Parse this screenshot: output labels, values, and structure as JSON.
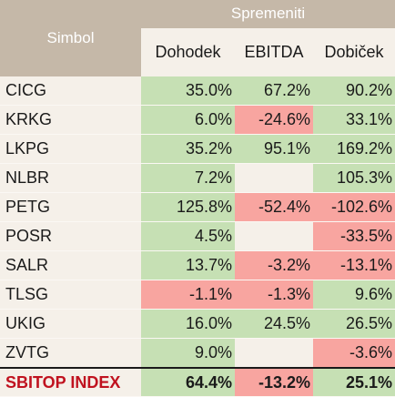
{
  "table": {
    "header": {
      "symbol_label": "Simbol",
      "group_label": "Spremeniti",
      "columns": [
        "Dohodek",
        "EBITDA",
        "Dobiček"
      ]
    },
    "rows": [
      {
        "symbol": "CICG",
        "values": [
          "35.0%",
          "67.2%",
          "90.2%"
        ],
        "states": [
          "pos",
          "pos",
          "pos"
        ]
      },
      {
        "symbol": "KRKG",
        "values": [
          "6.0%",
          "-24.6%",
          "33.1%"
        ],
        "states": [
          "pos",
          "neg",
          "pos"
        ]
      },
      {
        "symbol": "LKPG",
        "values": [
          "35.2%",
          "95.1%",
          "169.2%"
        ],
        "states": [
          "pos",
          "pos",
          "pos"
        ]
      },
      {
        "symbol": "NLBR",
        "values": [
          "7.2%",
          "",
          "105.3%"
        ],
        "states": [
          "pos",
          "neu",
          "pos"
        ]
      },
      {
        "symbol": "PETG",
        "values": [
          "125.8%",
          "-52.4%",
          "-102.6%"
        ],
        "states": [
          "pos",
          "neg",
          "neg"
        ]
      },
      {
        "symbol": "POSR",
        "values": [
          "4.5%",
          "",
          "-33.5%"
        ],
        "states": [
          "pos",
          "neu",
          "neg"
        ]
      },
      {
        "symbol": "SALR",
        "values": [
          "13.7%",
          "-3.2%",
          "-13.1%"
        ],
        "states": [
          "pos",
          "neg",
          "neg"
        ]
      },
      {
        "symbol": "TLSG",
        "values": [
          "-1.1%",
          "-1.3%",
          "9.6%"
        ],
        "states": [
          "neg",
          "neg",
          "pos"
        ]
      },
      {
        "symbol": "UKIG",
        "values": [
          "16.0%",
          "24.5%",
          "26.5%"
        ],
        "states": [
          "pos",
          "pos",
          "pos"
        ]
      },
      {
        "symbol": "ZVTG",
        "values": [
          "9.0%",
          "",
          "-3.6%"
        ],
        "states": [
          "pos",
          "neu",
          "neg"
        ]
      }
    ],
    "total": {
      "symbol": "SBITOP INDEX",
      "values": [
        "64.4%",
        "-13.2%",
        "25.1%"
      ],
      "states": [
        "pos",
        "neg",
        "pos"
      ]
    },
    "colors": {
      "positive": "#c6e0b4",
      "negative": "#f8a5a0",
      "header": "#c5b8a8",
      "total_label": "#c0121f"
    }
  }
}
